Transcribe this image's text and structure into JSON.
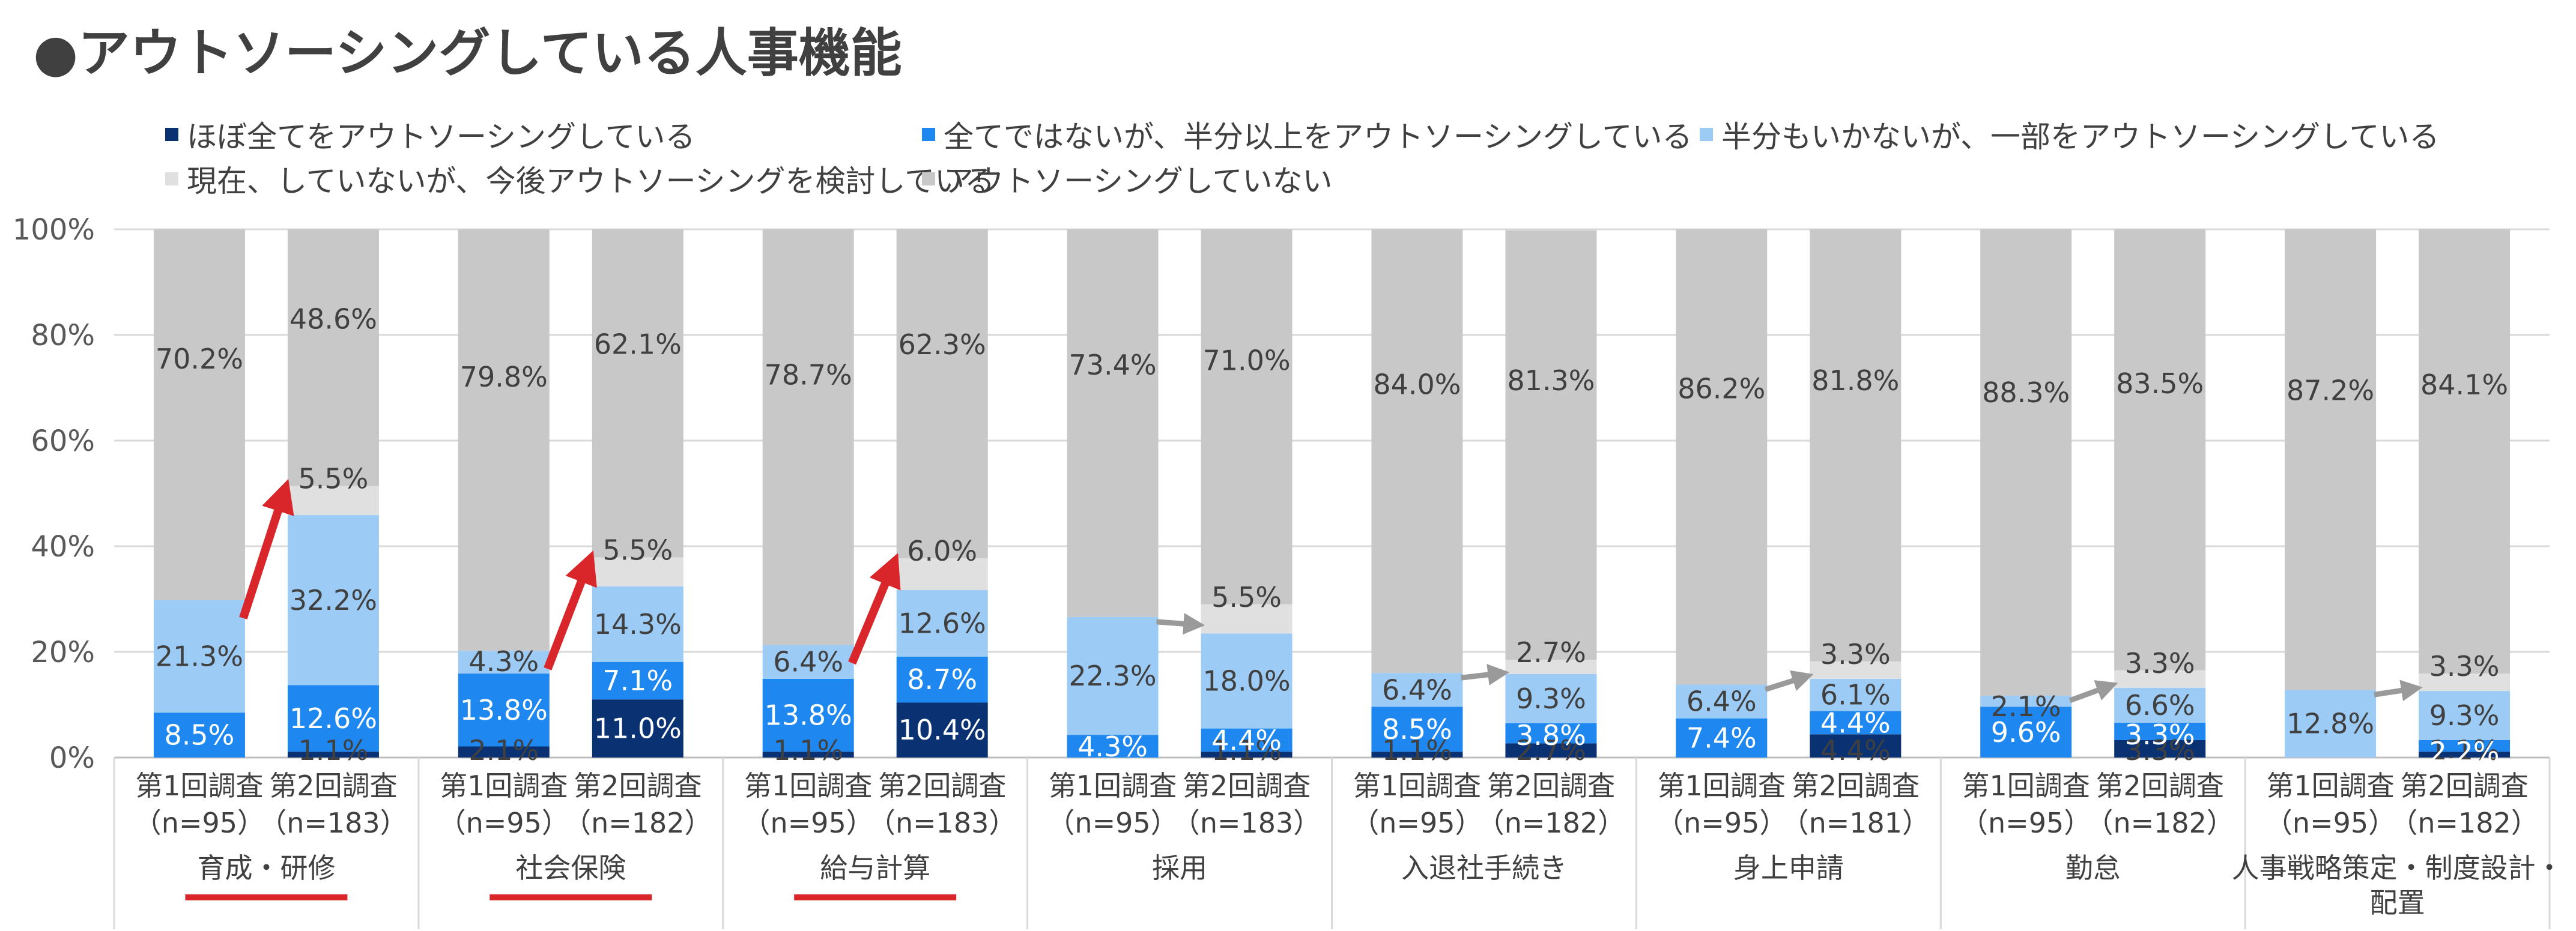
{
  "title": "●アウトソーシングしている人事機能",
  "colors": {
    "full": "#0a3272",
    "half_plus": "#1f88f0",
    "partial": "#9ccbf5",
    "considering": "#e0e0e0",
    "none": "#c8c8c8",
    "red_arrow": "#d9262b",
    "gray_arrow": "#9a9a9a"
  },
  "legend": [
    {
      "label": "ほぼ全てをアウトソーシングしている",
      "color_key": "full"
    },
    {
      "label": "全てではないが、半分以上をアウトソーシングしている",
      "color_key": "half_plus"
    },
    {
      "label": "半分もいかないが、一部をアウトソーシングしている",
      "color_key": "partial"
    },
    {
      "label": "現在、していないが、今後アウトソーシングを検討している",
      "color_key": "considering"
    },
    {
      "label": "アウトソーシングしていない",
      "color_key": "none"
    }
  ],
  "chart_data": {
    "type": "bar",
    "stacked": true,
    "ylim": [
      0,
      100
    ],
    "yticks": [
      "0%",
      "20%",
      "40%",
      "60%",
      "80%",
      "100%"
    ],
    "series_names": [
      "ほぼ全てをアウトソーシングしている",
      "全てではないが、半分以上をアウトソーシングしている",
      "半分もいかないが、一部をアウトソーシングしている",
      "現在、していないが、今後アウトソーシングを検討している",
      "アウトソーシングしていない"
    ],
    "groups": [
      {
        "name": "育成・研修",
        "underline": true,
        "arrow": "red",
        "bars": [
          {
            "label": [
              "第1回調査",
              "（n=95）"
            ],
            "values": [
              0,
              8.5,
              21.3,
              0,
              70.2
            ],
            "labels": [
              "",
              "8.5%",
              "21.3%",
              "",
              "70.2%"
            ]
          },
          {
            "label": [
              "第2回調査",
              "（n=183）"
            ],
            "values": [
              1.1,
              12.6,
              32.2,
              5.5,
              48.6
            ],
            "labels": [
              "1.1%",
              "12.6%",
              "32.2%",
              "5.5%",
              "48.6%"
            ]
          }
        ]
      },
      {
        "name": "社会保険",
        "underline": true,
        "arrow": "red",
        "bars": [
          {
            "label": [
              "第1回調査",
              "（n=95）"
            ],
            "values": [
              2.1,
              13.8,
              4.3,
              0,
              79.8
            ],
            "labels": [
              "2.1%",
              "13.8%",
              "4.3%",
              "",
              "79.8%"
            ]
          },
          {
            "label": [
              "第2回調査",
              "（n=182）"
            ],
            "values": [
              11.0,
              7.1,
              14.3,
              5.5,
              62.1
            ],
            "labels": [
              "11.0%",
              "7.1%",
              "14.3%",
              "5.5%",
              "62.1%"
            ]
          }
        ]
      },
      {
        "name": "給与計算",
        "underline": true,
        "arrow": "red",
        "bars": [
          {
            "label": [
              "第1回調査",
              "（n=95）"
            ],
            "values": [
              1.1,
              13.8,
              6.4,
              0,
              78.7
            ],
            "labels": [
              "1.1%",
              "13.8%",
              "6.4%",
              "",
              "78.7%"
            ]
          },
          {
            "label": [
              "第2回調査",
              "（n=183）"
            ],
            "values": [
              10.4,
              8.7,
              12.6,
              6.0,
              62.3
            ],
            "labels": [
              "10.4%",
              "8.7%",
              "12.6%",
              "6.0%",
              "62.3%"
            ]
          }
        ]
      },
      {
        "name": "採用",
        "underline": false,
        "arrow": "gray",
        "bars": [
          {
            "label": [
              "第1回調査",
              "（n=95）"
            ],
            "values": [
              0,
              4.3,
              22.3,
              0,
              73.4
            ],
            "labels": [
              "",
              "4.3%",
              "22.3%",
              "",
              "73.4%"
            ]
          },
          {
            "label": [
              "第2回調査",
              "（n=183）"
            ],
            "values": [
              1.1,
              4.4,
              18.0,
              5.5,
              71.0
            ],
            "labels": [
              "1.1%",
              "4.4%",
              "18.0%",
              "5.5%",
              "71.0%"
            ]
          }
        ]
      },
      {
        "name": "入退社手続き",
        "underline": false,
        "arrow": "gray",
        "bars": [
          {
            "label": [
              "第1回調査",
              "（n=95）"
            ],
            "values": [
              1.1,
              8.5,
              6.4,
              0,
              84.0
            ],
            "labels": [
              "1.1%",
              "8.5%",
              "6.4%",
              "",
              "84.0%"
            ]
          },
          {
            "label": [
              "第2回調査",
              "（n=182）"
            ],
            "values": [
              2.7,
              3.8,
              9.3,
              2.7,
              81.3
            ],
            "labels": [
              "2.7%",
              "3.8%",
              "9.3%",
              "2.7%",
              "81.3%"
            ]
          }
        ]
      },
      {
        "name": "身上申請",
        "underline": false,
        "arrow": "gray",
        "bars": [
          {
            "label": [
              "第1回調査",
              "（n=95）"
            ],
            "values": [
              0,
              7.4,
              6.4,
              0,
              86.2
            ],
            "labels": [
              "",
              "7.4%",
              "6.4%",
              "",
              "86.2%"
            ]
          },
          {
            "label": [
              "第2回調査",
              "（n=181）"
            ],
            "values": [
              4.4,
              4.4,
              6.1,
              3.3,
              81.8
            ],
            "labels": [
              "4.4%",
              "4.4%",
              "6.1%",
              "3.3%",
              "81.8%"
            ]
          }
        ]
      },
      {
        "name": "勤怠",
        "underline": false,
        "arrow": "gray",
        "bars": [
          {
            "label": [
              "第1回調査",
              "（n=95）"
            ],
            "values": [
              0,
              9.6,
              2.1,
              0,
              88.3
            ],
            "labels": [
              "",
              "9.6%",
              "2.1%",
              "",
              "88.3%"
            ]
          },
          {
            "label": [
              "第2回調査",
              "（n=182）"
            ],
            "values": [
              3.3,
              3.3,
              6.6,
              3.3,
              83.5
            ],
            "labels": [
              "3.3%",
              "3.3%",
              "6.6%",
              "3.3%",
              "83.5%"
            ]
          }
        ]
      },
      {
        "name": "人事戦略策定・制度設計・配置",
        "underline": false,
        "arrow": "gray",
        "bars": [
          {
            "label": [
              "第1回調査",
              "（n=95）"
            ],
            "values": [
              0,
              0,
              12.8,
              0,
              87.2
            ],
            "labels": [
              "",
              "",
              "12.8%",
              "",
              "87.2%"
            ]
          },
          {
            "label": [
              "第2回調査",
              "（n=182）"
            ],
            "values": [
              1.1,
              2.2,
              9.3,
              3.3,
              84.1
            ],
            "labels": [
              "1.1%",
              "2.2%",
              "9.3%",
              "3.3%",
              "84.1%"
            ]
          }
        ]
      }
    ]
  }
}
